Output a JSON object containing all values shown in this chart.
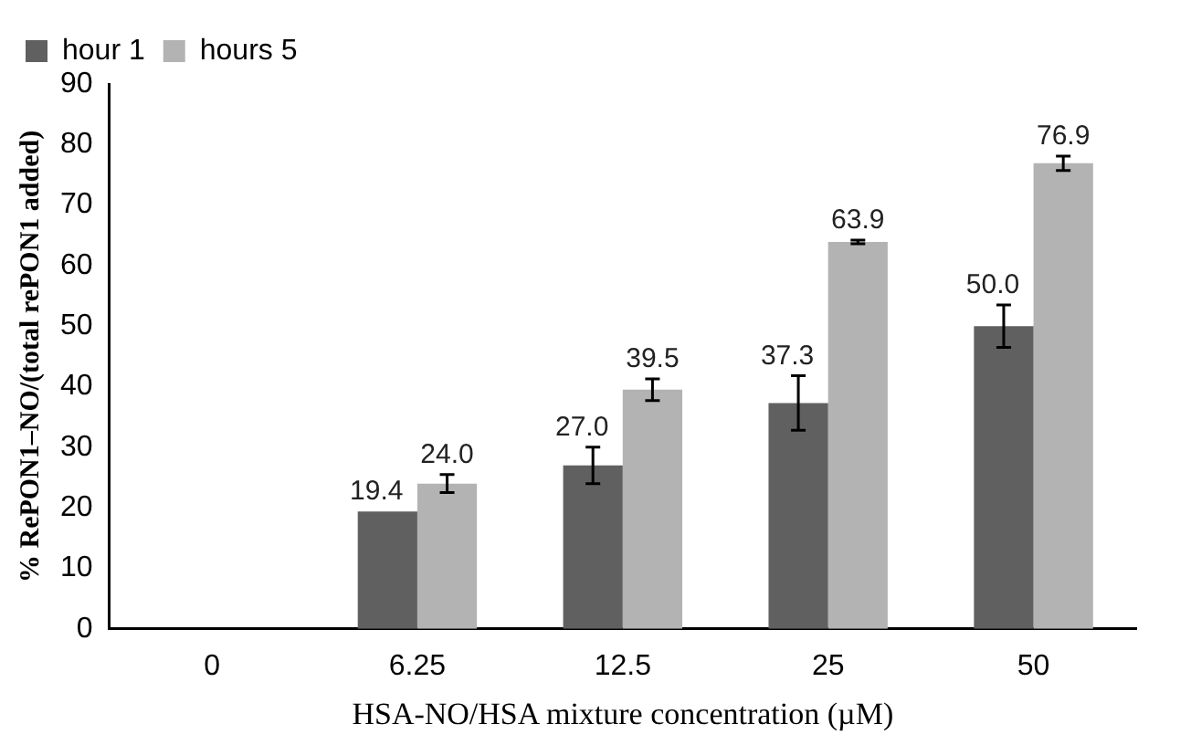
{
  "chart_data": {
    "type": "bar",
    "xlabel": "HSA-NO/HSA mixture concentration (µM)",
    "ylabel": "% RePON1–NO/(total rePON1 added)",
    "categories": [
      "0",
      "6.25",
      "12.5",
      "25",
      "50"
    ],
    "series": [
      {
        "name": "hour 1",
        "color": "#606060",
        "values": [
          0,
          19.4,
          27.0,
          37.3,
          50.0
        ],
        "errors": [
          null,
          null,
          3,
          4.5,
          3.5
        ],
        "value_labels": [
          null,
          "19.4",
          "27.0",
          "37.3",
          "50.0"
        ]
      },
      {
        "name": "hours 5",
        "color": "#b3b3b3",
        "values": [
          0,
          24.0,
          39.5,
          63.9,
          76.9
        ],
        "errors": [
          null,
          1.5,
          1.8,
          0.3,
          1.2
        ],
        "value_labels": [
          null,
          "24.0",
          "39.5",
          "63.9",
          "76.9"
        ]
      }
    ],
    "ylim": [
      0,
      90
    ],
    "yticks": [
      0,
      10,
      20,
      30,
      40,
      50,
      60,
      70,
      80,
      90
    ],
    "grid": false,
    "legend": "top left"
  }
}
